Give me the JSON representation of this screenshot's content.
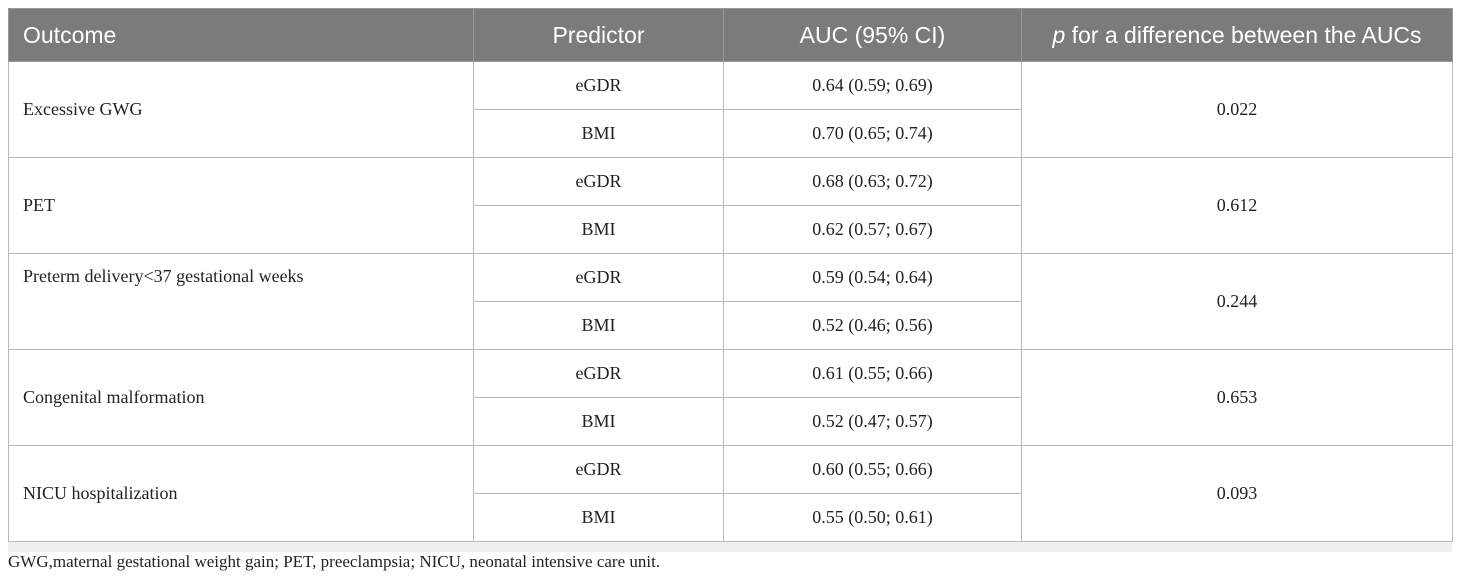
{
  "table": {
    "headers": {
      "outcome": "Outcome",
      "predictor": "Predictor",
      "auc": "AUC (95% CI)",
      "p_italic": "p",
      "p_rest": " for a difference between the AUCs"
    },
    "groups": [
      {
        "outcome": "Excessive GWG",
        "p": "0.022",
        "rows": [
          {
            "predictor": "eGDR",
            "auc": "0.64 (0.59; 0.69)"
          },
          {
            "predictor": "BMI",
            "auc": "0.70 (0.65; 0.74)"
          }
        ]
      },
      {
        "outcome": "PET",
        "p": "0.612",
        "rows": [
          {
            "predictor": "eGDR",
            "auc": "0.68 (0.63; 0.72)"
          },
          {
            "predictor": "BMI",
            "auc": "0.62 (0.57; 0.67)"
          }
        ]
      },
      {
        "outcome": "Preterm delivery<37 gestational weeks",
        "p": "0.244",
        "rows": [
          {
            "predictor": "eGDR",
            "auc": "0.59 (0.54; 0.64)"
          },
          {
            "predictor": "BMI",
            "auc": "0.52 (0.46; 0.56)"
          }
        ]
      },
      {
        "outcome": "Congenital malformation",
        "p": "0.653",
        "rows": [
          {
            "predictor": "eGDR",
            "auc": "0.61 (0.55; 0.66)"
          },
          {
            "predictor": "BMI",
            "auc": "0.52 (0.47; 0.57)"
          }
        ]
      },
      {
        "outcome": "NICU hospitalization",
        "p": "0.093",
        "rows": [
          {
            "predictor": "eGDR",
            "auc": "0.60 (0.55; 0.66)"
          },
          {
            "predictor": "BMI",
            "auc": "0.55 (0.50; 0.61)"
          }
        ]
      }
    ],
    "footnote": "GWG,maternal gestational weight gain; PET, preeclampsia; NICU, neonatal intensive care unit."
  }
}
